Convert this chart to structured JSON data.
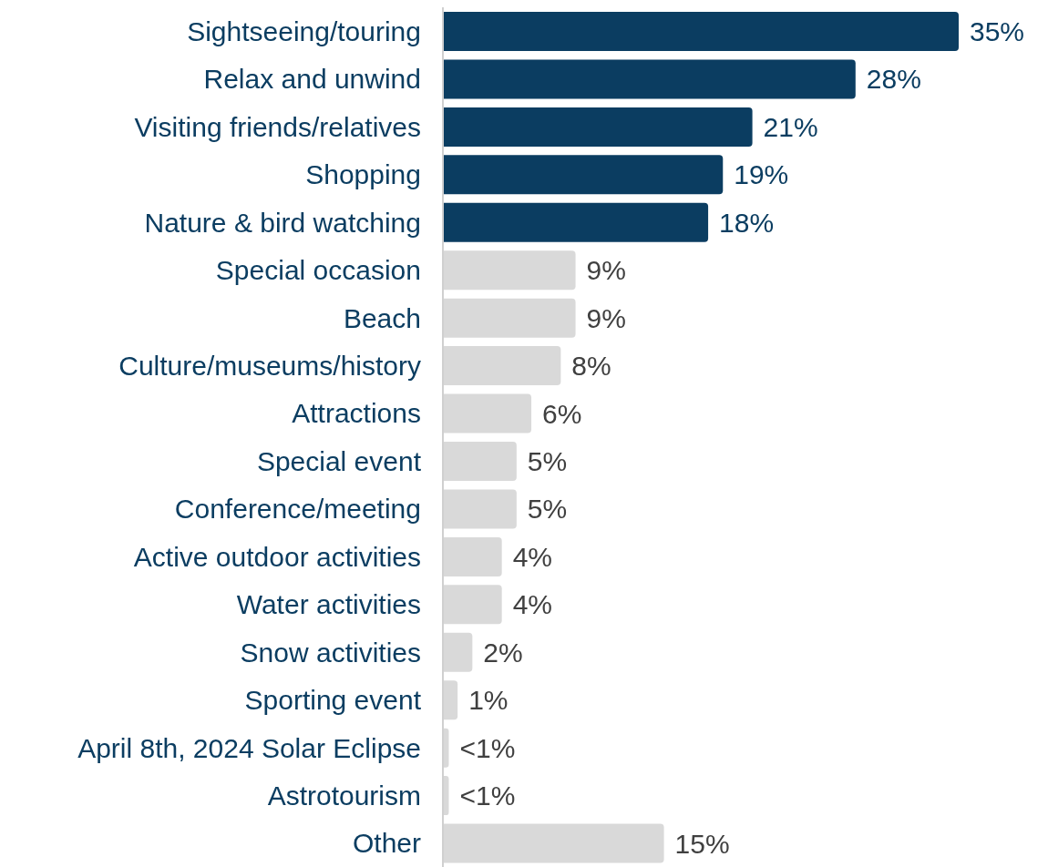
{
  "chart_data": {
    "type": "bar",
    "orientation": "horizontal",
    "categories": [
      "Sightseeing/touring",
      "Relax and unwind",
      "Visiting friends/relatives",
      "Shopping",
      "Nature & bird watching",
      "Special occasion",
      "Beach",
      "Culture/museums/history",
      "Attractions",
      "Special event",
      "Conference/meeting",
      "Active outdoor activities",
      "Water activities",
      "Snow activities",
      "Sporting event",
      "April 8th, 2024 Solar Eclipse",
      "Astrotourism",
      "Other"
    ],
    "values": [
      35,
      28,
      21,
      19,
      18,
      9,
      9,
      8,
      6,
      5,
      5,
      4,
      4,
      2,
      1,
      0.4,
      0.4,
      15
    ],
    "value_labels": [
      "35%",
      "28%",
      "21%",
      "19%",
      "18%",
      "9%",
      "9%",
      "8%",
      "6%",
      "5%",
      "5%",
      "4%",
      "4%",
      "2%",
      "1%",
      "<1%",
      "<1%",
      "15%"
    ],
    "colors": [
      "#0b3d61",
      "#0b3d61",
      "#0b3d61",
      "#0b3d61",
      "#0b3d61",
      "#d9d9d9",
      "#d9d9d9",
      "#d9d9d9",
      "#d9d9d9",
      "#d9d9d9",
      "#d9d9d9",
      "#d9d9d9",
      "#d9d9d9",
      "#d9d9d9",
      "#d9d9d9",
      "#d9d9d9",
      "#d9d9d9",
      "#d9d9d9"
    ],
    "grid": false,
    "legend": false
  }
}
